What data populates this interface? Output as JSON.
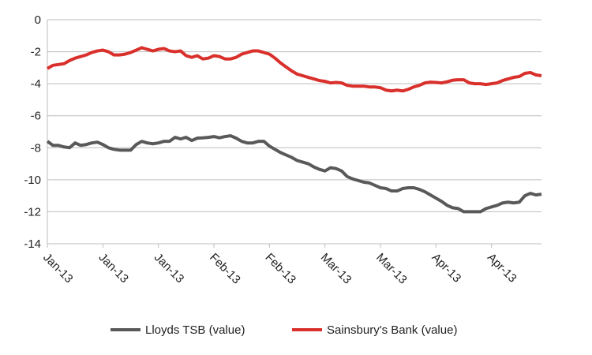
{
  "chart_data": {
    "type": "line",
    "categories": [
      "Jan-13",
      null,
      null,
      null,
      null,
      null,
      null,
      null,
      null,
      null,
      "Jan-13",
      null,
      null,
      null,
      null,
      null,
      null,
      null,
      null,
      null,
      "Jan-13",
      null,
      null,
      null,
      null,
      null,
      null,
      null,
      null,
      null,
      "Feb-13",
      null,
      null,
      null,
      null,
      null,
      null,
      null,
      null,
      null,
      "Feb-13",
      null,
      null,
      null,
      null,
      null,
      null,
      null,
      null,
      null,
      "Mar-13",
      null,
      null,
      null,
      null,
      null,
      null,
      null,
      null,
      null,
      "Mar-13",
      null,
      null,
      null,
      null,
      null,
      null,
      null,
      null,
      null,
      "Apr-13",
      null,
      null,
      null,
      null,
      null,
      null,
      null,
      null,
      null,
      "Apr-13",
      null,
      null,
      null,
      null,
      null,
      null,
      null,
      null,
      null
    ],
    "series": [
      {
        "name": "Lloyds TSB (value)",
        "color": "#595959",
        "values": [
          -7.6,
          -7.85,
          -7.85,
          -7.95,
          -8.0,
          -7.7,
          -7.85,
          -7.8,
          -7.7,
          -7.65,
          -7.8,
          -8.0,
          -8.1,
          -8.15,
          -8.15,
          -8.15,
          -7.8,
          -7.6,
          -7.7,
          -7.75,
          -7.7,
          -7.6,
          -7.6,
          -7.35,
          -7.45,
          -7.35,
          -7.55,
          -7.4,
          -7.38,
          -7.35,
          -7.3,
          -7.38,
          -7.3,
          -7.25,
          -7.4,
          -7.6,
          -7.7,
          -7.7,
          -7.6,
          -7.6,
          -7.9,
          -8.1,
          -8.3,
          -8.45,
          -8.6,
          -8.8,
          -8.9,
          -9.0,
          -9.2,
          -9.35,
          -9.45,
          -9.25,
          -9.3,
          -9.45,
          -9.8,
          -9.95,
          -10.05,
          -10.15,
          -10.2,
          -10.35,
          -10.5,
          -10.55,
          -10.7,
          -10.7,
          -10.55,
          -10.5,
          -10.5,
          -10.6,
          -10.75,
          -10.95,
          -11.15,
          -11.35,
          -11.6,
          -11.75,
          -11.8,
          -12.0,
          -12.0,
          -12.0,
          -12.0,
          -11.8,
          -11.7,
          -11.6,
          -11.45,
          -11.4,
          -11.45,
          -11.4,
          -11.0,
          -10.85,
          -10.95,
          -10.9
        ]
      },
      {
        "name": "Sainsbury's Bank (value)",
        "color": "#d9302c",
        "values": [
          -3.05,
          -2.85,
          -2.8,
          -2.75,
          -2.55,
          -2.4,
          -2.3,
          -2.2,
          -2.05,
          -1.95,
          -1.9,
          -2.0,
          -2.2,
          -2.2,
          -2.15,
          -2.05,
          -1.9,
          -1.75,
          -1.85,
          -1.95,
          -1.85,
          -1.8,
          -1.95,
          -2.0,
          -1.95,
          -2.25,
          -2.35,
          -2.25,
          -2.45,
          -2.4,
          -2.25,
          -2.3,
          -2.45,
          -2.45,
          -2.35,
          -2.15,
          -2.05,
          -1.95,
          -1.95,
          -2.05,
          -2.15,
          -2.4,
          -2.7,
          -2.95,
          -3.2,
          -3.4,
          -3.5,
          -3.6,
          -3.7,
          -3.8,
          -3.85,
          -3.95,
          -3.92,
          -3.95,
          -4.1,
          -4.15,
          -4.15,
          -4.15,
          -4.2,
          -4.2,
          -4.25,
          -4.4,
          -4.45,
          -4.4,
          -4.45,
          -4.35,
          -4.2,
          -4.1,
          -3.95,
          -3.9,
          -3.92,
          -3.95,
          -3.88,
          -3.78,
          -3.75,
          -3.75,
          -3.95,
          -4.0,
          -4.0,
          -4.05,
          -4.0,
          -3.95,
          -3.8,
          -3.7,
          -3.6,
          -3.55,
          -3.35,
          -3.3,
          -3.45,
          -3.5
        ]
      }
    ],
    "ylim": [
      -14,
      0
    ],
    "yticks": [
      0,
      -2,
      -4,
      -6,
      -8,
      -10,
      -12,
      -14
    ],
    "grid": true,
    "legend": "bottom"
  }
}
